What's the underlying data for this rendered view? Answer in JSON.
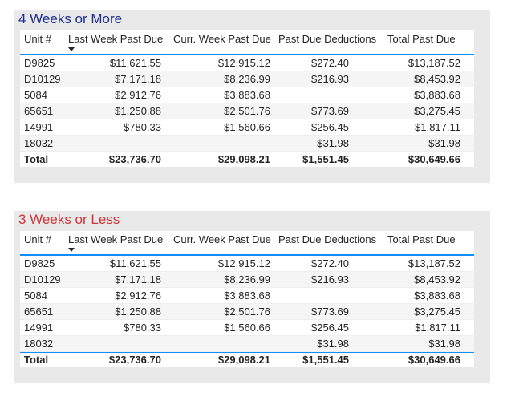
{
  "tables": [
    {
      "title": "4 Weeks or More",
      "columns": [
        "Unit #",
        "Last Week Past Due",
        "Curr. Week Past Due",
        "Past Due Deductions",
        "Total Past Due"
      ],
      "rows": [
        [
          "D9825",
          "$11,621.55",
          "$12,915.12",
          "$272.40",
          "$13,187.52"
        ],
        [
          "D10129",
          "$7,171.18",
          "$8,236.99",
          "$216.93",
          "$8,453.92"
        ],
        [
          "5084",
          "$2,912.76",
          "$3,883.68",
          "",
          "$3,883.68"
        ],
        [
          "65651",
          "$1,250.88",
          "$2,501.76",
          "$773.69",
          "$3,275.45"
        ],
        [
          "14991",
          "$780.33",
          "$1,560.66",
          "$256.45",
          "$1,817.11"
        ],
        [
          "18032",
          "",
          "",
          "$31.98",
          "$31.98"
        ]
      ],
      "total": [
        "Total",
        "$23,736.70",
        "$29,098.21",
        "$1,551.45",
        "$30,649.66"
      ]
    },
    {
      "title": "3 Weeks or Less",
      "columns": [
        "Unit #",
        "Last Week Past Due",
        "Curr. Week Past Due",
        "Past Due Deductions",
        "Total Past Due"
      ],
      "rows": [
        [
          "D9825",
          "$11,621.55",
          "$12,915.12",
          "$272.40",
          "$13,187.52"
        ],
        [
          "D10129",
          "$7,171.18",
          "$8,236.99",
          "$216.93",
          "$8,453.92"
        ],
        [
          "5084",
          "$2,912.76",
          "$3,883.68",
          "",
          "$3,883.68"
        ],
        [
          "65651",
          "$1,250.88",
          "$2,501.76",
          "$773.69",
          "$3,275.45"
        ],
        [
          "14991",
          "$780.33",
          "$1,560.66",
          "$256.45",
          "$1,817.11"
        ],
        [
          "18032",
          "",
          "",
          "$31.98",
          "$31.98"
        ]
      ],
      "total": [
        "Total",
        "$23,736.70",
        "$29,098.21",
        "$1,551.45",
        "$30,649.66"
      ]
    }
  ],
  "colors": {
    "title_1": "#1e2f8f",
    "title_2": "#d13438",
    "accent_border": "#118dff",
    "panel_background": "#e9e9e9"
  },
  "icons": {
    "sort": "sort-descending-icon"
  }
}
